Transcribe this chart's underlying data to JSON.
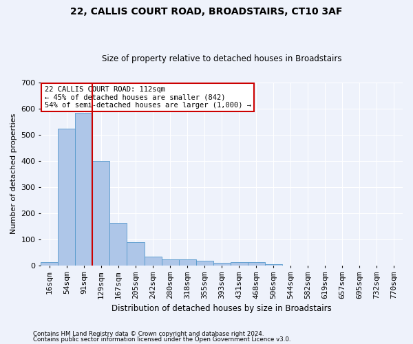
{
  "title": "22, CALLIS COURT ROAD, BROADSTAIRS, CT10 3AF",
  "subtitle": "Size of property relative to detached houses in Broadstairs",
  "xlabel": "Distribution of detached houses by size in Broadstairs",
  "ylabel": "Number of detached properties",
  "footnote1": "Contains HM Land Registry data © Crown copyright and database right 2024.",
  "footnote2": "Contains public sector information licensed under the Open Government Licence v3.0.",
  "bin_labels": [
    "16sqm",
    "54sqm",
    "91sqm",
    "129sqm",
    "167sqm",
    "205sqm",
    "242sqm",
    "280sqm",
    "318sqm",
    "355sqm",
    "393sqm",
    "431sqm",
    "468sqm",
    "506sqm",
    "544sqm",
    "582sqm",
    "619sqm",
    "657sqm",
    "695sqm",
    "732sqm",
    "770sqm"
  ],
  "bar_values": [
    13,
    522,
    583,
    400,
    163,
    88,
    32,
    22,
    22,
    18,
    8,
    12,
    12,
    5,
    0,
    0,
    0,
    0,
    0,
    0,
    0
  ],
  "bar_color": "#aec6e8",
  "bar_edge_color": "#5599cc",
  "vline_x": 2.5,
  "vline_color": "#cc0000",
  "annotation_text": "22 CALLIS COURT ROAD: 112sqm\n← 45% of detached houses are smaller (842)\n54% of semi-detached houses are larger (1,000) →",
  "annotation_box_color": "#ffffff",
  "annotation_box_edge": "#cc0000",
  "ylim": [
    0,
    700
  ],
  "yticks": [
    0,
    100,
    200,
    300,
    400,
    500,
    600,
    700
  ],
  "background_color": "#eef2fb",
  "plot_background": "#eef2fb",
  "grid_color": "#ffffff"
}
